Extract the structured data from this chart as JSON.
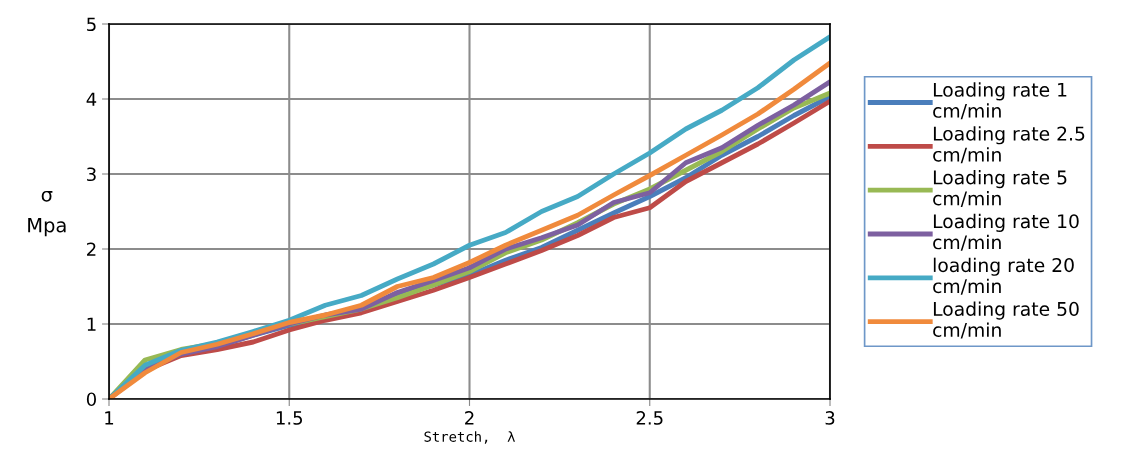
{
  "chart_data": {
    "type": "line",
    "xlabel": "Stretch,  λ",
    "ylabel": "σ\nMpa",
    "x": [
      1.0,
      1.1,
      1.2,
      1.3,
      1.4,
      1.5,
      1.6,
      1.7,
      1.8,
      1.9,
      2.0,
      2.1,
      2.2,
      2.3,
      2.4,
      2.5,
      2.6,
      2.7,
      2.8,
      2.9,
      3.0
    ],
    "series": [
      {
        "name": "Loading rate 1 cm/min",
        "color": "#4a7ebb",
        "values": [
          0,
          0.42,
          0.62,
          0.7,
          0.85,
          0.98,
          1.08,
          1.18,
          1.38,
          1.52,
          1.65,
          1.85,
          2.02,
          2.25,
          2.48,
          2.7,
          2.95,
          3.25,
          3.5,
          3.78,
          4.03
        ]
      },
      {
        "name": "Loading rate 2.5 cm/min",
        "color": "#be4b48",
        "values": [
          0,
          0.38,
          0.58,
          0.66,
          0.76,
          0.92,
          1.05,
          1.15,
          1.3,
          1.45,
          1.62,
          1.8,
          1.98,
          2.18,
          2.42,
          2.55,
          2.9,
          3.15,
          3.4,
          3.68,
          3.97
        ]
      },
      {
        "name": "Loading rate 5 cm/min",
        "color": "#98b954",
        "values": [
          0,
          0.52,
          0.66,
          0.74,
          0.88,
          1.0,
          1.1,
          1.2,
          1.35,
          1.52,
          1.7,
          1.95,
          2.12,
          2.35,
          2.6,
          2.8,
          3.05,
          3.3,
          3.6,
          3.88,
          4.08
        ]
      },
      {
        "name": "Loading rate 10 cm/min",
        "color": "#7d60a0",
        "values": [
          0,
          0.4,
          0.6,
          0.7,
          0.85,
          1.0,
          1.12,
          1.2,
          1.42,
          1.58,
          1.75,
          2.0,
          2.15,
          2.32,
          2.62,
          2.75,
          3.15,
          3.35,
          3.65,
          3.92,
          4.23
        ]
      },
      {
        "name": "loading rate 20 cm/min",
        "color": "#46aac5",
        "values": [
          0,
          0.45,
          0.65,
          0.76,
          0.9,
          1.05,
          1.25,
          1.38,
          1.6,
          1.8,
          2.05,
          2.22,
          2.5,
          2.7,
          3.0,
          3.28,
          3.6,
          3.85,
          4.15,
          4.52,
          4.83
        ]
      },
      {
        "name": "Loading rate 50 cm/min",
        "color": "#f08a3c",
        "values": [
          0,
          0.35,
          0.62,
          0.73,
          0.87,
          1.02,
          1.12,
          1.25,
          1.5,
          1.62,
          1.82,
          2.05,
          2.25,
          2.45,
          2.72,
          2.98,
          3.25,
          3.52,
          3.8,
          4.13,
          4.48
        ]
      }
    ],
    "xlim": [
      1,
      3
    ],
    "xticks": [
      1,
      1.5,
      2,
      2.5,
      3
    ],
    "ylim": [
      0,
      5
    ],
    "yticks": [
      0,
      1,
      2,
      3,
      4,
      5
    ],
    "grid": true,
    "legend": "right",
    "marker": "none",
    "line_style": "solid"
  }
}
